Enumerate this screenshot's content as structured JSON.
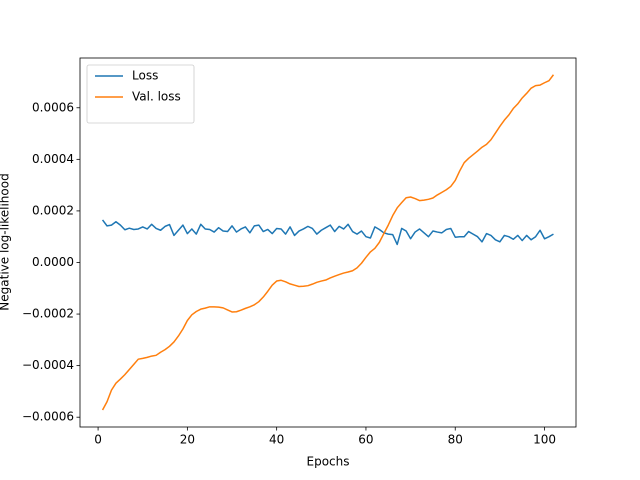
{
  "chart_data": {
    "type": "line",
    "xlabel": "Epochs",
    "ylabel": "Negative log-likelihood",
    "x": [
      1,
      2,
      3,
      4,
      5,
      6,
      7,
      8,
      9,
      10,
      11,
      12,
      13,
      14,
      15,
      16,
      17,
      18,
      19,
      20,
      21,
      22,
      23,
      24,
      25,
      26,
      27,
      28,
      29,
      30,
      31,
      32,
      33,
      34,
      35,
      36,
      37,
      38,
      39,
      40,
      41,
      42,
      43,
      44,
      45,
      46,
      47,
      48,
      49,
      50,
      51,
      52,
      53,
      54,
      55,
      56,
      57,
      58,
      59,
      60,
      61,
      62,
      63,
      64,
      65,
      66,
      67,
      68,
      69,
      70,
      71,
      72,
      73,
      74,
      75,
      76,
      77,
      78,
      79,
      80,
      81,
      82,
      83,
      84,
      85,
      86,
      87,
      88,
      89,
      90,
      91,
      92,
      93,
      94,
      95,
      96,
      97,
      98,
      99,
      100,
      101,
      102
    ],
    "series": [
      {
        "name": "Loss",
        "color": "#1f77b4",
        "values": [
          0.000165,
          0.000142,
          0.000145,
          0.000158,
          0.000145,
          0.000127,
          0.000133,
          0.000128,
          0.00013,
          0.000138,
          0.00013,
          0.000148,
          0.000132,
          0.000125,
          0.00014,
          0.000147,
          0.000105,
          0.000125,
          0.000145,
          0.000112,
          0.00013,
          0.00011,
          0.000148,
          0.00013,
          0.000128,
          0.000118,
          0.000135,
          0.000122,
          0.00012,
          0.000142,
          0.000118,
          0.00013,
          0.000138,
          0.000115,
          0.000142,
          0.000145,
          0.00012,
          0.000128,
          0.000112,
          0.000132,
          0.00013,
          0.00011,
          0.000138,
          0.000105,
          0.000122,
          0.00013,
          0.00014,
          0.000132,
          0.00011,
          0.000125,
          0.000135,
          0.000145,
          0.00012,
          0.00014,
          0.00013,
          0.000148,
          0.00012,
          0.00011,
          0.000122,
          0.0001,
          9.5e-05,
          0.000138,
          0.000128,
          0.000115,
          0.00011,
          0.000108,
          7e-05,
          0.000132,
          0.000122,
          9.2e-05,
          0.000118,
          0.00013,
          0.000115,
          0.0001,
          0.000122,
          0.000118,
          0.000115,
          0.000128,
          0.000132,
          9.8e-05,
          0.0001,
          0.0001,
          0.00012,
          0.00011,
          0.0001,
          8e-05,
          0.000112,
          0.000105,
          8.8e-05,
          8e-05,
          0.000105,
          0.0001,
          9e-05,
          0.000105,
          8.5e-05,
          0.000105,
          8.8e-05,
          0.0001,
          0.000125,
          9.2e-05,
          0.0001,
          0.00011
        ]
      },
      {
        "name": "Val. loss",
        "color": "#ff7f0e",
        "values": [
          -0.000572,
          -0.00054,
          -0.000495,
          -0.000468,
          -0.000452,
          -0.000435,
          -0.000415,
          -0.000395,
          -0.000375,
          -0.000372,
          -0.000368,
          -0.000363,
          -0.00036,
          -0.000348,
          -0.000338,
          -0.000325,
          -0.000308,
          -0.000285,
          -0.000258,
          -0.000225,
          -0.000203,
          -0.00019,
          -0.000181,
          -0.000177,
          -0.000172,
          -0.000172,
          -0.000173,
          -0.000176,
          -0.000184,
          -0.000192,
          -0.000191,
          -0.000185,
          -0.000178,
          -0.000172,
          -0.000164,
          -0.000152,
          -0.000134,
          -0.000112,
          -8.8e-05,
          -7.2e-05,
          -6.9e-05,
          -7.5e-05,
          -8.3e-05,
          -8.8e-05,
          -9.3e-05,
          -9.2e-05,
          -9e-05,
          -8.4e-05,
          -7.7e-05,
          -7.2e-05,
          -6.8e-05,
          -6e-05,
          -5.3e-05,
          -4.7e-05,
          -4.1e-05,
          -3.7e-05,
          -3.2e-05,
          -2.1e-05,
          -3e-06,
          2e-05,
          4.1e-05,
          5.5e-05,
          7.8e-05,
          0.000112,
          0.000145,
          0.000182,
          0.000212,
          0.000232,
          0.000251,
          0.000254,
          0.000248,
          0.00024,
          0.000242,
          0.000245,
          0.00025,
          0.000262,
          0.000272,
          0.000282,
          0.000295,
          0.000318,
          0.000355,
          0.000387,
          0.000404,
          0.000418,
          0.000432,
          0.000447,
          0.000458,
          0.000476,
          0.000502,
          0.000528,
          0.000552,
          0.000572,
          0.000597,
          0.000615,
          0.000638,
          0.000656,
          0.000676,
          0.000686,
          0.000688,
          0.000697,
          0.000705,
          0.000728
        ]
      }
    ],
    "xlim": [
      -4.05,
      107.05
    ],
    "ylim": [
      -0.000638,
      0.000793
    ],
    "xticks": [
      0,
      20,
      40,
      60,
      80,
      100
    ],
    "yticks": [
      {
        "value": -0.0006,
        "label": "−0.0006"
      },
      {
        "value": -0.0004,
        "label": "−0.0004"
      },
      {
        "value": -0.0002,
        "label": "−0.0002"
      },
      {
        "value": 0,
        "label": "0.0000"
      },
      0.0002,
      0.0004,
      0.0006
    ],
    "legend": "upper left"
  }
}
